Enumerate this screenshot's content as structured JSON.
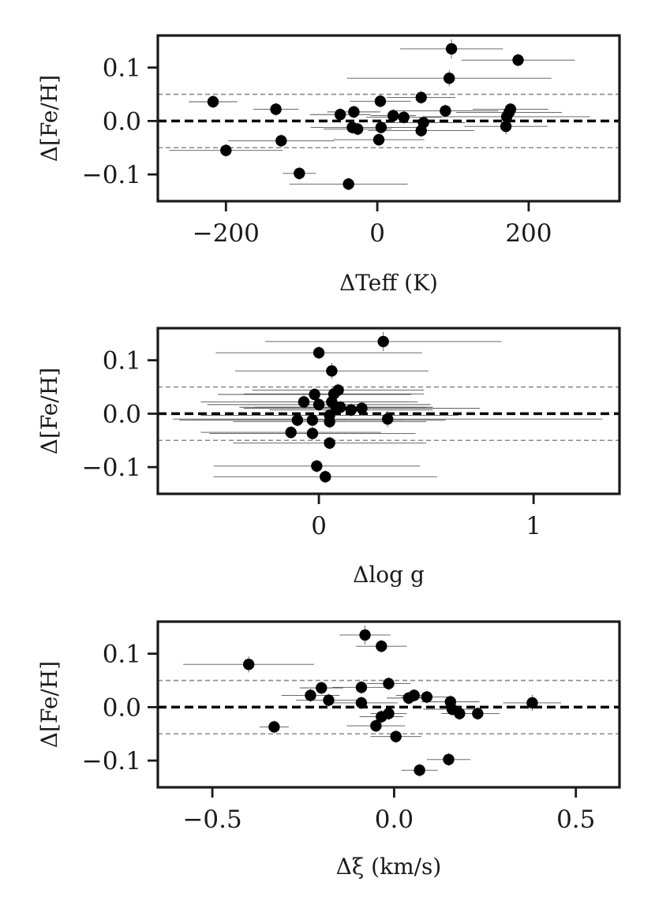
{
  "chart_data": [
    {
      "type": "scatter",
      "xlabel": "ΔTeff (K)",
      "ylabel": "Δ[Fe/H]",
      "xlim": [
        -290,
        320
      ],
      "ylim": [
        -0.15,
        0.16
      ],
      "x_ticks": [
        {
          "value": -200,
          "label": "−200"
        },
        {
          "value": 0,
          "label": "0"
        },
        {
          "value": 200,
          "label": "200"
        }
      ],
      "y_ticks": [
        {
          "value": 0.1,
          "label": "0.1"
        },
        {
          "value": 0.0,
          "label": "0.0"
        },
        {
          "value": -0.1,
          "label": "−0.1"
        }
      ],
      "reference_lines": [
        {
          "y": 0.0,
          "style": "dashed-bold"
        },
        {
          "y": 0.05,
          "style": "dashed-thin"
        },
        {
          "y": -0.05,
          "style": "dashed-thin"
        }
      ],
      "points": [
        {
          "x": -217,
          "y": 0.036,
          "xerr": 32,
          "yerr": 0.012
        },
        {
          "x": -200,
          "y": -0.055,
          "xerr": 75,
          "yerr": 0.012
        },
        {
          "x": -134,
          "y": 0.022,
          "xerr": 30,
          "yerr": 0.012
        },
        {
          "x": -127,
          "y": -0.037,
          "xerr": 70,
          "yerr": 0.012
        },
        {
          "x": -103,
          "y": -0.098,
          "xerr": 22,
          "yerr": 0.012
        },
        {
          "x": -49,
          "y": 0.012,
          "xerr": 40,
          "yerr": 0.012
        },
        {
          "x": -38,
          "y": -0.118,
          "xerr": 78,
          "yerr": 0.012
        },
        {
          "x": -33,
          "y": -0.012,
          "xerr": 55,
          "yerr": 0.012
        },
        {
          "x": -31,
          "y": 0.017,
          "xerr": 35,
          "yerr": 0.012
        },
        {
          "x": -26,
          "y": -0.015,
          "xerr": 45,
          "yerr": 0.012
        },
        {
          "x": 2,
          "y": -0.035,
          "xerr": 60,
          "yerr": 0.012
        },
        {
          "x": 4,
          "y": 0.037,
          "xerr": 40,
          "yerr": 0.012
        },
        {
          "x": 5,
          "y": -0.012,
          "xerr": 50,
          "yerr": 0.012
        },
        {
          "x": 21,
          "y": 0.01,
          "xerr": 30,
          "yerr": 0.012
        },
        {
          "x": 35,
          "y": 0.007,
          "xerr": 50,
          "yerr": 0.012
        },
        {
          "x": 58,
          "y": 0.044,
          "xerr": 45,
          "yerr": 0.012
        },
        {
          "x": 58,
          "y": -0.018,
          "xerr": 70,
          "yerr": 0.012
        },
        {
          "x": 61,
          "y": -0.003,
          "xerr": 55,
          "yerr": 0.012
        },
        {
          "x": 90,
          "y": 0.019,
          "xerr": 70,
          "yerr": 0.012
        },
        {
          "x": 95,
          "y": 0.08,
          "xerr": 135,
          "yerr": 0.015
        },
        {
          "x": 98,
          "y": 0.135,
          "xerr": 68,
          "yerr": 0.018
        },
        {
          "x": 170,
          "y": -0.01,
          "xerr": 55,
          "yerr": 0.015
        },
        {
          "x": 171,
          "y": 0.008,
          "xerr": 110,
          "yerr": 0.012
        },
        {
          "x": 174,
          "y": 0.016,
          "xerr": 70,
          "yerr": 0.012
        },
        {
          "x": 176,
          "y": 0.022,
          "xerr": 50,
          "yerr": 0.012
        },
        {
          "x": 186,
          "y": 0.114,
          "xerr": 75,
          "yerr": 0.012
        }
      ]
    },
    {
      "type": "scatter",
      "xlabel": "Δlog g",
      "ylabel": "Δ[Fe/H]",
      "xlim": [
        -0.75,
        1.4
      ],
      "ylim": [
        -0.15,
        0.16
      ],
      "x_ticks": [
        {
          "value": 0,
          "label": "0"
        },
        {
          "value": 1,
          "label": "1"
        }
      ],
      "y_ticks": [
        {
          "value": 0.1,
          "label": "0.1"
        },
        {
          "value": 0.0,
          "label": "0.0"
        },
        {
          "value": -0.1,
          "label": "−0.1"
        }
      ],
      "reference_lines": [
        {
          "y": 0.0,
          "style": "dashed-bold"
        },
        {
          "y": 0.05,
          "style": "dashed-thin"
        },
        {
          "y": -0.05,
          "style": "dashed-thin"
        }
      ],
      "points": [
        {
          "x": 0.0,
          "y": 0.114,
          "xerr": 0.48,
          "yerr": 0.012
        },
        {
          "x": 0.3,
          "y": 0.135,
          "xerr": 0.55,
          "yerr": 0.018
        },
        {
          "x": 0.06,
          "y": 0.08,
          "xerr": 0.45,
          "yerr": 0.015
        },
        {
          "x": 0.09,
          "y": 0.044,
          "xerr": 0.4,
          "yerr": 0.012
        },
        {
          "x": 0.07,
          "y": 0.037,
          "xerr": 0.42,
          "yerr": 0.012
        },
        {
          "x": -0.02,
          "y": 0.036,
          "xerr": 0.45,
          "yerr": 0.012
        },
        {
          "x": 0.06,
          "y": 0.022,
          "xerr": 0.4,
          "yerr": 0.012
        },
        {
          "x": -0.07,
          "y": 0.022,
          "xerr": 0.48,
          "yerr": 0.012
        },
        {
          "x": 0.0,
          "y": 0.017,
          "xerr": 0.52,
          "yerr": 0.012
        },
        {
          "x": 0.08,
          "y": 0.012,
          "xerr": 0.45,
          "yerr": 0.012
        },
        {
          "x": 0.1,
          "y": 0.012,
          "xerr": 0.4,
          "yerr": 0.012
        },
        {
          "x": 0.2,
          "y": 0.01,
          "xerr": 0.55,
          "yerr": 0.012
        },
        {
          "x": 0.15,
          "y": 0.007,
          "xerr": 0.38,
          "yerr": 0.012
        },
        {
          "x": 0.05,
          "y": -0.003,
          "xerr": 0.6,
          "yerr": 0.012
        },
        {
          "x": 0.32,
          "y": -0.01,
          "xerr": 1.0,
          "yerr": 0.015
        },
        {
          "x": -0.03,
          "y": -0.012,
          "xerr": 0.62,
          "yerr": 0.012
        },
        {
          "x": -0.1,
          "y": -0.012,
          "xerr": 0.5,
          "yerr": 0.012
        },
        {
          "x": 0.05,
          "y": -0.015,
          "xerr": 0.45,
          "yerr": 0.012
        },
        {
          "x": -0.13,
          "y": -0.035,
          "xerr": 0.42,
          "yerr": 0.012
        },
        {
          "x": -0.03,
          "y": -0.037,
          "xerr": 0.48,
          "yerr": 0.012
        },
        {
          "x": 0.05,
          "y": -0.055,
          "xerr": 0.45,
          "yerr": 0.012
        },
        {
          "x": -0.01,
          "y": -0.098,
          "xerr": 0.48,
          "yerr": 0.012
        },
        {
          "x": 0.03,
          "y": -0.118,
          "xerr": 0.52,
          "yerr": 0.012
        }
      ]
    },
    {
      "type": "scatter",
      "xlabel": "Δξ (km/s)",
      "ylabel": "Δ[Fe/H]",
      "xlim": [
        -0.65,
        0.62
      ],
      "ylim": [
        -0.15,
        0.16
      ],
      "x_ticks": [
        {
          "value": -0.5,
          "label": "−0.5"
        },
        {
          "value": 0.0,
          "label": "0.0"
        },
        {
          "value": 0.5,
          "label": "0.5"
        }
      ],
      "y_ticks": [
        {
          "value": 0.1,
          "label": "0.1"
        },
        {
          "value": 0.0,
          "label": "0.0"
        },
        {
          "value": -0.1,
          "label": "−0.1"
        }
      ],
      "reference_lines": [
        {
          "y": 0.0,
          "style": "dashed-bold"
        },
        {
          "y": 0.05,
          "style": "dashed-thin"
        },
        {
          "y": -0.05,
          "style": "dashed-thin"
        }
      ],
      "points": [
        {
          "x": -0.4,
          "y": 0.08,
          "xerr": 0.18,
          "yerr": 0.015
        },
        {
          "x": -0.33,
          "y": -0.037,
          "xerr": 0.04,
          "yerr": 0.012
        },
        {
          "x": -0.23,
          "y": 0.022,
          "xerr": 0.08,
          "yerr": 0.012
        },
        {
          "x": -0.2,
          "y": 0.036,
          "xerr": 0.06,
          "yerr": 0.012
        },
        {
          "x": -0.18,
          "y": 0.013,
          "xerr": 0.09,
          "yerr": 0.012
        },
        {
          "x": -0.09,
          "y": 0.037,
          "xerr": 0.08,
          "yerr": 0.012
        },
        {
          "x": -0.09,
          "y": 0.008,
          "xerr": 0.1,
          "yerr": 0.012
        },
        {
          "x": -0.08,
          "y": 0.135,
          "xerr": 0.07,
          "yerr": 0.018
        },
        {
          "x": -0.035,
          "y": 0.114,
          "xerr": 0.07,
          "yerr": 0.012
        },
        {
          "x": -0.015,
          "y": 0.044,
          "xerr": 0.06,
          "yerr": 0.012
        },
        {
          "x": -0.015,
          "y": -0.012,
          "xerr": 0.05,
          "yerr": 0.012
        },
        {
          "x": -0.035,
          "y": -0.018,
          "xerr": 0.06,
          "yerr": 0.012
        },
        {
          "x": -0.05,
          "y": -0.035,
          "xerr": 0.08,
          "yerr": 0.012
        },
        {
          "x": 0.005,
          "y": -0.055,
          "xerr": 0.07,
          "yerr": 0.012
        },
        {
          "x": 0.04,
          "y": 0.017,
          "xerr": 0.06,
          "yerr": 0.012
        },
        {
          "x": 0.055,
          "y": 0.022,
          "xerr": 0.05,
          "yerr": 0.012
        },
        {
          "x": 0.09,
          "y": 0.019,
          "xerr": 0.07,
          "yerr": 0.012
        },
        {
          "x": 0.07,
          "y": -0.118,
          "xerr": 0.05,
          "yerr": 0.012
        },
        {
          "x": 0.15,
          "y": -0.098,
          "xerr": 0.06,
          "yerr": 0.012
        },
        {
          "x": 0.155,
          "y": 0.01,
          "xerr": 0.08,
          "yerr": 0.012
        },
        {
          "x": 0.16,
          "y": -0.004,
          "xerr": 0.08,
          "yerr": 0.012
        },
        {
          "x": 0.18,
          "y": -0.012,
          "xerr": 0.05,
          "yerr": 0.012
        },
        {
          "x": 0.23,
          "y": -0.012,
          "xerr": 0.06,
          "yerr": 0.012
        },
        {
          "x": 0.38,
          "y": 0.008,
          "xerr": 0.08,
          "yerr": 0.015
        }
      ]
    }
  ]
}
